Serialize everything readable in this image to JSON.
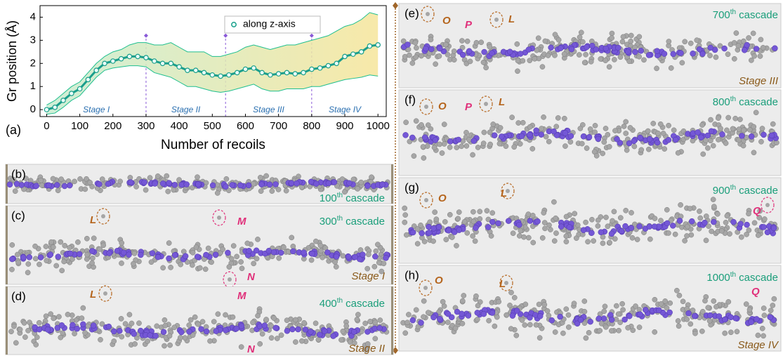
{
  "chart_data": {
    "type": "line",
    "x": [
      0,
      25,
      50,
      75,
      100,
      125,
      150,
      175,
      200,
      225,
      250,
      275,
      300,
      325,
      350,
      375,
      400,
      425,
      450,
      475,
      500,
      525,
      550,
      575,
      600,
      625,
      650,
      675,
      700,
      725,
      750,
      775,
      800,
      825,
      850,
      875,
      900,
      925,
      950,
      975,
      1000
    ],
    "series": [
      {
        "name": "along z-axis",
        "color": "#1a9e8c",
        "values": [
          0,
          0.1,
          0.4,
          0.7,
          0.9,
          1.3,
          1.7,
          2.0,
          2.1,
          2.2,
          2.3,
          2.3,
          2.25,
          2.1,
          2.0,
          2.0,
          1.85,
          1.7,
          1.7,
          1.6,
          1.5,
          1.45,
          1.5,
          1.6,
          1.75,
          1.8,
          1.6,
          1.5,
          1.55,
          1.6,
          1.55,
          1.6,
          1.75,
          1.8,
          1.9,
          2.0,
          2.3,
          2.4,
          2.5,
          2.75,
          2.8
        ]
      }
    ],
    "band": {
      "upper": [
        0.2,
        0.4,
        0.7,
        1.0,
        1.2,
        1.6,
        2.0,
        2.3,
        2.5,
        2.6,
        2.8,
        2.9,
        2.9,
        2.8,
        2.8,
        2.9,
        2.7,
        2.5,
        2.5,
        2.5,
        2.3,
        2.3,
        2.4,
        2.5,
        2.7,
        2.8,
        2.7,
        2.6,
        2.7,
        2.8,
        2.8,
        2.9,
        3.0,
        3.1,
        3.2,
        3.4,
        3.6,
        3.7,
        3.9,
        4.2,
        4.1
      ],
      "lower": [
        -0.2,
        -0.15,
        0.1,
        0.4,
        0.6,
        1.0,
        1.4,
        1.7,
        1.8,
        1.85,
        1.9,
        1.9,
        1.85,
        1.6,
        1.5,
        1.4,
        1.2,
        1.0,
        1.0,
        0.9,
        0.8,
        0.75,
        0.8,
        0.9,
        1.0,
        1.1,
        0.9,
        0.8,
        0.8,
        0.9,
        0.9,
        0.9,
        1.0,
        1.0,
        1.1,
        1.2,
        1.3,
        1.35,
        1.4,
        1.5,
        1.45
      ],
      "color": "#1fbf8f"
    },
    "xlabel": "Number of recoils",
    "ylabel": "Gr position (Å)",
    "xlim": [
      -20,
      1025
    ],
    "ylim": [
      -0.3,
      4.5
    ],
    "xticks": [
      0,
      100,
      200,
      300,
      400,
      500,
      600,
      700,
      800,
      900,
      1000
    ],
    "yticks": [
      0,
      1,
      2,
      3,
      4
    ],
    "panel_label": "(a)",
    "stages": [
      "Stage I",
      "Stage II",
      "Stage III",
      "Stage IV"
    ],
    "stage_boundaries": [
      300,
      540,
      800
    ],
    "stage_boundary_top": 3.2,
    "legend": "upper right"
  },
  "panels": [
    {
      "label": "(b)",
      "cascade_number": "100",
      "cascade_suffix": "th",
      "cascade_word": "cascade",
      "annotations": []
    },
    {
      "label": "(c)",
      "cascade_number": "300",
      "cascade_suffix": "th",
      "cascade_word": "cascade",
      "stage": "Stage I",
      "annotations": [
        {
          "text": "L",
          "color": "#b5651d"
        },
        {
          "text": "M",
          "color": "#e0307a"
        },
        {
          "text": "N",
          "color": "#e0307a"
        }
      ]
    },
    {
      "label": "(d)",
      "cascade_number": "400",
      "cascade_suffix": "th",
      "cascade_word": "cascade",
      "stage": "Stage II",
      "annotations": [
        {
          "text": "L",
          "color": "#b5651d"
        },
        {
          "text": "M",
          "color": "#e0307a"
        },
        {
          "text": "N",
          "color": "#e0307a"
        }
      ]
    },
    {
      "label": "(e)",
      "cascade_number": "700",
      "cascade_suffix": "th",
      "cascade_word": "cascade",
      "stage": "Stage III",
      "annotations": [
        {
          "text": "O",
          "color": "#b5651d"
        },
        {
          "text": "P",
          "color": "#e0307a"
        },
        {
          "text": "L",
          "color": "#b5651d"
        }
      ]
    },
    {
      "label": "(f)",
      "cascade_number": "800",
      "cascade_suffix": "th",
      "cascade_word": "cascade",
      "annotations": [
        {
          "text": "O",
          "color": "#b5651d"
        },
        {
          "text": "P",
          "color": "#e0307a"
        },
        {
          "text": "L",
          "color": "#b5651d"
        }
      ]
    },
    {
      "label": "(g)",
      "cascade_number": "900",
      "cascade_suffix": "th",
      "cascade_word": "cascade",
      "annotations": [
        {
          "text": "O",
          "color": "#b5651d"
        },
        {
          "text": "L",
          "color": "#b5651d"
        },
        {
          "text": "Q",
          "color": "#e0307a"
        }
      ]
    },
    {
      "label": "(h)",
      "cascade_number": "1000",
      "cascade_suffix": "th",
      "cascade_word": "cascade",
      "stage": "Stage IV",
      "annotations": [
        {
          "text": "O",
          "color": "#b5651d"
        },
        {
          "text": "L",
          "color": "#b5651d"
        },
        {
          "text": "Q",
          "color": "#e0307a"
        }
      ]
    }
  ]
}
